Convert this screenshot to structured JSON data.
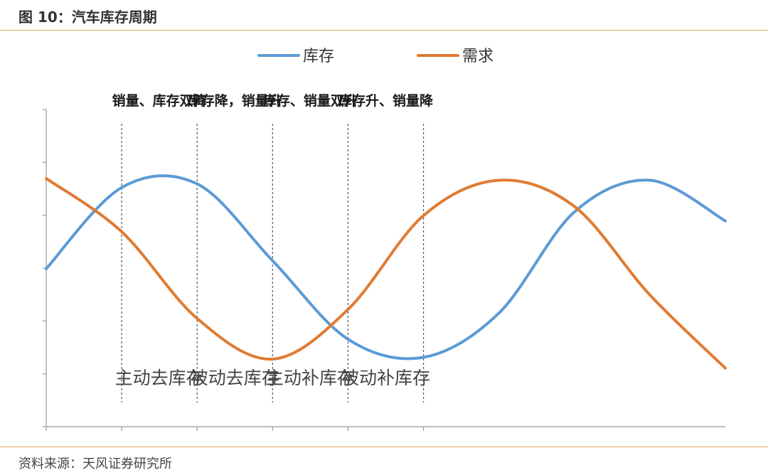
{
  "figure_title": "图 10：汽车库存周期",
  "source": "资料来源：天风证券研究所",
  "colors": {
    "inventory": "#5b9bd5",
    "demand": "#e07b32",
    "rule": "#e8a26a",
    "axis": "#999999"
  },
  "chart_data": {
    "type": "line",
    "title": "",
    "xlabel": "",
    "ylabel": "",
    "xlim": [
      0,
      9
    ],
    "ylim": [
      -1,
      1
    ],
    "x_ticks": [
      0,
      1,
      2,
      3,
      4,
      5
    ],
    "y_ticks": 7,
    "grid": false,
    "legend_position": "top-center",
    "series": [
      {
        "name": "库存",
        "color": "#5b9bd5",
        "x": [
          0,
          1,
          2,
          3,
          4,
          5,
          6,
          7,
          8,
          9
        ],
        "y": [
          0.0,
          0.9,
          0.94,
          0.09,
          -0.78,
          -0.98,
          -0.49,
          0.63,
          0.98,
          0.53
        ]
      },
      {
        "name": "需求",
        "color": "#e07b32",
        "x": [
          0,
          1,
          2,
          3,
          4,
          5,
          6,
          7,
          8,
          9
        ],
        "y": [
          1.0,
          0.41,
          -0.55,
          -1.0,
          -0.45,
          0.59,
          0.98,
          0.69,
          -0.29,
          -1.1
        ]
      }
    ],
    "phase_boundaries": [
      1,
      2,
      3,
      4,
      5
    ],
    "phases": [
      {
        "top_label": "销量、库存双降",
        "bottom_label": "主动去库存"
      },
      {
        "top_label": "库存降，销量升",
        "bottom_label": "被动去库存"
      },
      {
        "top_label": "库存、销量双升",
        "bottom_label": "主动补库存"
      },
      {
        "top_label": "库存升、销量降",
        "bottom_label": "被动补库存"
      }
    ]
  }
}
